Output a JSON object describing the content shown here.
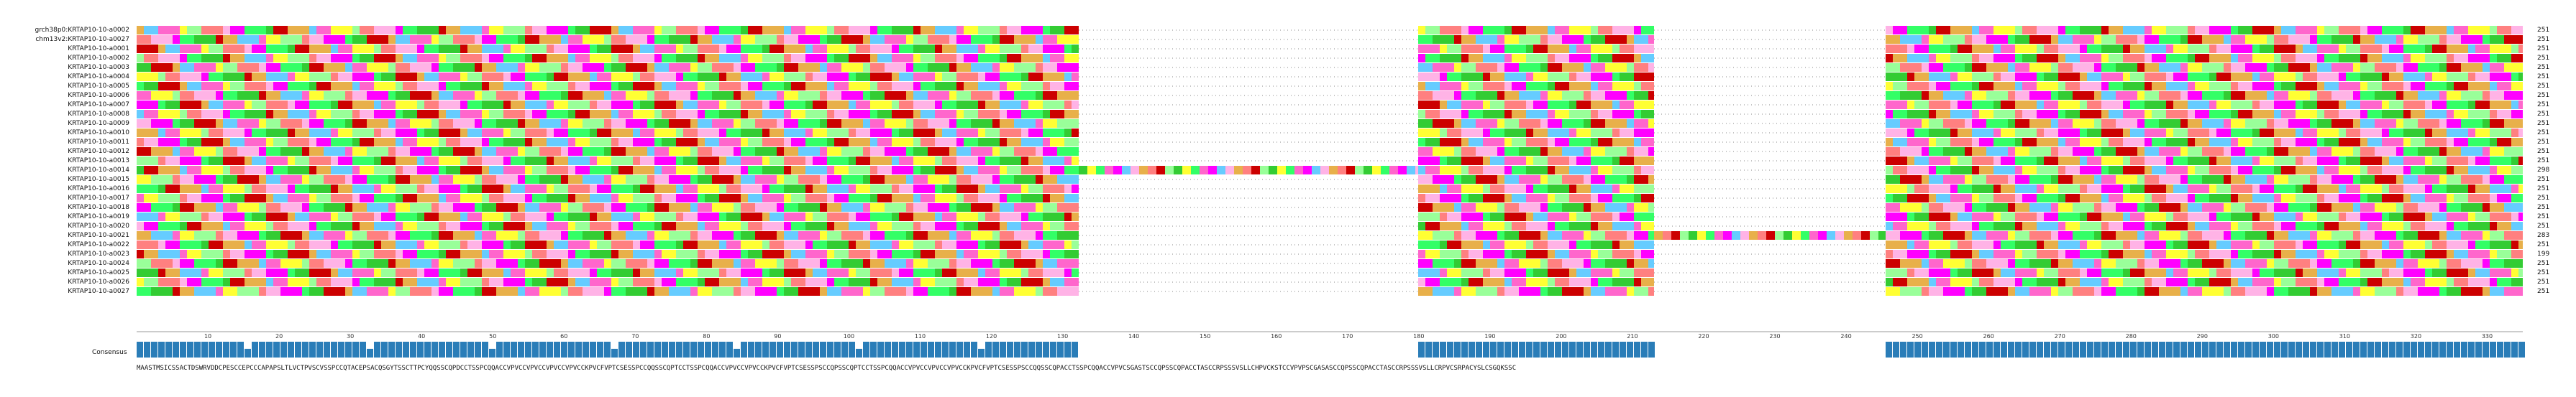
{
  "alignment": {
    "sequences": [
      {
        "name": "grch38p0:KRTAP10-10-a0002",
        "length": "251"
      },
      {
        "name": "chm13v2:KRTAP10-10-a0027",
        "length": "251"
      },
      {
        "name": "KRTAP10-10-a0001",
        "length": "251"
      },
      {
        "name": "KRTAP10-10-a0002",
        "length": "251"
      },
      {
        "name": "KRTAP10-10-a0003",
        "length": "251"
      },
      {
        "name": "KRTAP10-10-a0004",
        "length": "251"
      },
      {
        "name": "KRTAP10-10-a0005",
        "length": "251"
      },
      {
        "name": "KRTAP10-10-a0006",
        "length": "251"
      },
      {
        "name": "KRTAP10-10-a0007",
        "length": "251"
      },
      {
        "name": "KRTAP10-10-a0008",
        "length": "251"
      },
      {
        "name": "KRTAP10-10-a0009",
        "length": "251"
      },
      {
        "name": "KRTAP10-10-a0010",
        "length": "251"
      },
      {
        "name": "KRTAP10-10-a0011",
        "length": "251"
      },
      {
        "name": "KRTAP10-10-a0012",
        "length": "251"
      },
      {
        "name": "KRTAP10-10-a0013",
        "length": "251"
      },
      {
        "name": "KRTAP10-10-a0014",
        "length": "298"
      },
      {
        "name": "KRTAP10-10-a0015",
        "length": "251"
      },
      {
        "name": "KRTAP10-10-a0016",
        "length": "251"
      },
      {
        "name": "KRTAP10-10-a0017",
        "length": "251"
      },
      {
        "name": "KRTAP10-10-a0018",
        "length": "251"
      },
      {
        "name": "KRTAP10-10-a0019",
        "length": "251"
      },
      {
        "name": "KRTAP10-10-a0020",
        "length": "251"
      },
      {
        "name": "KRTAP10-10-a0021",
        "length": "283"
      },
      {
        "name": "KRTAP10-10-a0022",
        "length": "251"
      },
      {
        "name": "KRTAP10-10-a0023",
        "length": "199"
      },
      {
        "name": "KRTAP10-10-a0024",
        "length": "251"
      },
      {
        "name": "KRTAP10-10-a0025",
        "length": "251"
      },
      {
        "name": "KRTAP10-10-a0026",
        "length": "251"
      },
      {
        "name": "KRTAP10-10-a0027",
        "length": "251"
      }
    ],
    "consensus_label": "Consensus",
    "ruler_ticks": [
      "10",
      "20",
      "30",
      "40",
      "50",
      "60",
      "70",
      "80",
      "90",
      "100",
      "110",
      "120",
      "130",
      "140",
      "150",
      "160",
      "170",
      "180",
      "190",
      "200",
      "210",
      "220",
      "230",
      "240",
      "250",
      "260",
      "270",
      "280",
      "290",
      "300",
      "310",
      "320",
      "330"
    ],
    "consensus_sequence": "MAASTMSICSSACTDSWRVDDCPESCCEPCCCAPAPSLTLVCTPVSCVSSPCCQTACEPSACQSGYTSSCTTPCYQQSSCQPDCCTSSPCQQACCVPVCCVPVCCVPVCCVPVCCKPVCFVPTCSESSPCCQQSSCQPTCCTSSPCQQACCVPVCCVPVCCKPVCFVPTCSESSPSCCQPSSCQPTCCTSSPCQQACCVPVCCVPVCCVPVCCKPVCFVPTCSESSPSCCQQSSCQPACCTSSPCQQACCVPVCSGASTSCCQPSSCQPACCTASCCRPSSSVSLLCHPVCKSTCCVPVPSCGASASCCQPSSCQPACCTASCCRPSSSVSLLCRPVCSRPACYSLCSGQKSSC"
  }
}
